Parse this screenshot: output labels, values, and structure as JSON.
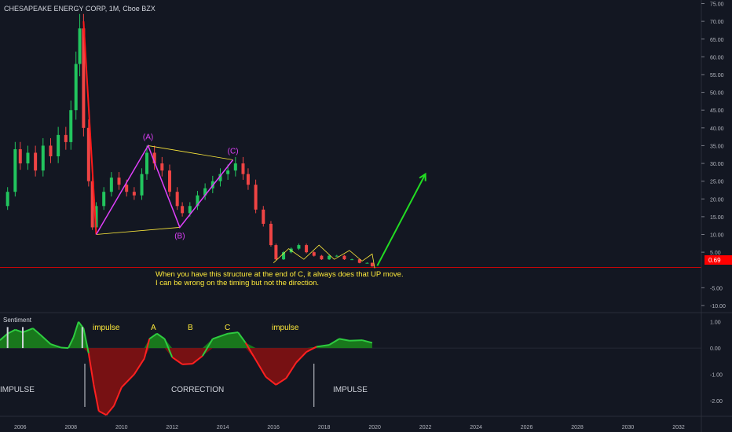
{
  "header": {
    "symbol_title": "CHESAPEAKE ENERGY CORP, 1M, Cboe BZX"
  },
  "colors": {
    "background": "#131722",
    "candle_up": "#26a69a",
    "candle_down": "#ef5350",
    "price_line": "#ff0000",
    "wave_lines": "#e040fb",
    "channel_lines": "#ffeb3b",
    "arrow": "#22dd22",
    "sentiment_positive": "#1b8a1b",
    "sentiment_negative": "#8a1010",
    "annotation_text": "#ffeb3b"
  },
  "price_badge": {
    "label": "0.69"
  },
  "note": {
    "line1": "When you have this structure at the end of C, it always does that UP move.",
    "line2": "I can be wrong on the timing but not the direction."
  },
  "sentiment": {
    "title": "Sentiment",
    "labels": [
      "impulse",
      "A",
      "B",
      "C",
      "impulse"
    ],
    "phases": [
      "IMPULSE",
      "CORRECTION",
      "IMPULSE"
    ],
    "yticks": [
      "1.00",
      "0.00",
      "-1.00",
      "-2.00"
    ],
    "line": [
      [
        2005.2,
        0.3
      ],
      [
        2005.5,
        0.55
      ],
      [
        2005.8,
        0.7
      ],
      [
        2006.1,
        0.6
      ],
      [
        2006.5,
        0.75
      ],
      [
        2006.8,
        0.5
      ],
      [
        2007.2,
        0.15
      ],
      [
        2007.6,
        0.02
      ],
      [
        2007.9,
        0.0
      ],
      [
        2008.1,
        0.4
      ],
      [
        2008.3,
        1.0
      ],
      [
        2008.5,
        0.75
      ],
      [
        2008.7,
        -0.2
      ],
      [
        2008.9,
        -1.4
      ],
      [
        2009.1,
        -2.4
      ],
      [
        2009.4,
        -2.55
      ],
      [
        2009.7,
        -2.2
      ],
      [
        2010.0,
        -1.5
      ],
      [
        2010.5,
        -1.0
      ],
      [
        2010.9,
        -0.4
      ],
      [
        2011.1,
        0.35
      ],
      [
        2011.4,
        0.55
      ],
      [
        2011.7,
        0.35
      ],
      [
        2012.0,
        -0.35
      ],
      [
        2012.4,
        -0.62
      ],
      [
        2012.8,
        -0.6
      ],
      [
        2013.2,
        -0.3
      ],
      [
        2013.6,
        0.35
      ],
      [
        2014.2,
        0.55
      ],
      [
        2014.6,
        0.6
      ],
      [
        2014.9,
        0.2
      ],
      [
        2015.3,
        -0.45
      ],
      [
        2015.7,
        -1.1
      ],
      [
        2016.1,
        -1.4
      ],
      [
        2016.5,
        -1.15
      ],
      [
        2016.9,
        -0.55
      ],
      [
        2017.3,
        -0.15
      ],
      [
        2017.7,
        0.05
      ],
      [
        2018.2,
        0.12
      ],
      [
        2018.6,
        0.35
      ],
      [
        2019.0,
        0.28
      ],
      [
        2019.5,
        0.3
      ],
      [
        2019.9,
        0.2
      ]
    ],
    "ylim": [
      -2.6,
      1.35
    ]
  },
  "chart_data": {
    "type": "line",
    "title": "CHESAPEAKE ENERGY CORP, 1M, Cboe BZX",
    "xlabel": "",
    "ylabel": "",
    "xticks": [
      "2006",
      "2008",
      "2010",
      "2012",
      "2014",
      "2016",
      "2018",
      "2020",
      "2022",
      "2024",
      "2026",
      "2028",
      "2030",
      "2032"
    ],
    "yticks": [
      "75.00",
      "70.00",
      "65.00",
      "60.00",
      "55.00",
      "50.00",
      "45.00",
      "40.00",
      "35.00",
      "30.00",
      "25.00",
      "20.00",
      "15.00",
      "10.00",
      "5.00",
      "-5.00",
      "-10.00"
    ],
    "xlim": [
      2005.2,
      2032.9
    ],
    "ylim": [
      -12,
      76
    ],
    "grid": false,
    "current_price": 0.69,
    "series": [
      {
        "name": "",
        "x": [
          2005.2,
          2005.5,
          2005.8,
          2006.0,
          2006.3,
          2006.6,
          2006.9,
          2007.2,
          2007.5,
          2007.8,
          2008.0,
          2008.2,
          2008.35,
          2008.5,
          2008.7,
          2008.85,
          2009.0,
          2009.3,
          2009.6,
          2009.9,
          2010.2,
          2010.5,
          2010.8,
          2011.0,
          2011.3,
          2011.6,
          2011.9,
          2012.2,
          2012.4,
          2012.7,
          2013.0,
          2013.3,
          2013.6,
          2013.9,
          2014.2,
          2014.5,
          2014.8,
          2015.0,
          2015.3,
          2015.6,
          2015.9,
          2016.1,
          2016.4,
          2016.7,
          2017.0,
          2017.3,
          2017.6,
          2017.9,
          2018.2,
          2018.5,
          2018.8,
          2019.1,
          2019.4,
          2019.7,
          2019.9
        ],
        "values": [
          18,
          22,
          34,
          30,
          33,
          28,
          35,
          32,
          38,
          36,
          45,
          58,
          68,
          40,
          25,
          12,
          18,
          22,
          26,
          24,
          22,
          21,
          27,
          33,
          30,
          28,
          22,
          18,
          16,
          18,
          21,
          23,
          25,
          27,
          28,
          30,
          27,
          24,
          17,
          13,
          7,
          3,
          5,
          6,
          7,
          5,
          4,
          3,
          4,
          4,
          3,
          3,
          2,
          2,
          1
        ]
      }
    ],
    "wave_labels": [
      {
        "label": "(A)",
        "x": 2011.05,
        "y": 35
      },
      {
        "label": "(B)",
        "x": 2012.3,
        "y": 12
      },
      {
        "label": "(C)",
        "x": 2014.4,
        "y": 31
      }
    ],
    "wave_path": [
      [
        2009.0,
        10
      ],
      [
        2011.05,
        35
      ],
      [
        2012.3,
        12
      ],
      [
        2014.4,
        31
      ]
    ],
    "channel_upper": [
      [
        2011.05,
        35
      ],
      [
        2014.4,
        31
      ]
    ],
    "channel_lower": [
      [
        2009.0,
        10
      ],
      [
        2012.3,
        12
      ]
    ],
    "projection_arrow": [
      [
        2020.1,
        1.2
      ],
      [
        2022.0,
        27
      ]
    ],
    "wedge": [
      [
        2016.0,
        2
      ],
      [
        2016.6,
        6
      ],
      [
        2017.2,
        3
      ],
      [
        2017.8,
        7
      ],
      [
        2018.4,
        3
      ],
      [
        2019.0,
        5.5
      ],
      [
        2019.5,
        2.5
      ],
      [
        2019.9,
        4.5
      ],
      [
        2020.0,
        0.5
      ]
    ]
  }
}
